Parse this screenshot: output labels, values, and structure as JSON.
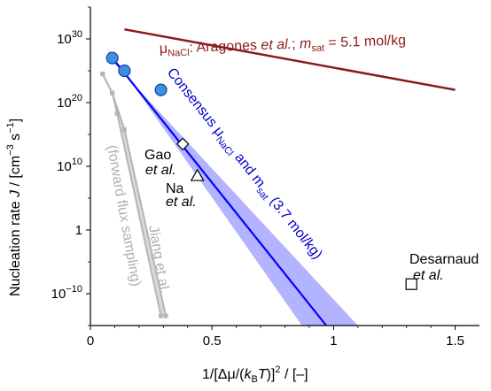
{
  "chart_data": {
    "type": "line",
    "xlabel": "1/[Δμ/(k_B T)]^2 / [–]",
    "ylabel": "Nucleation rate J / [cm^-3 s^-1]",
    "xlim": [
      0,
      1.6
    ],
    "ylim": [
      -15,
      35
    ],
    "y_scale": "log10",
    "x_ticks": [
      "0",
      "0.5",
      "1",
      "1.5"
    ],
    "y_ticks": [
      "10^-10",
      "1",
      "10^10",
      "10^20",
      "10^30"
    ],
    "grid": false,
    "colors": {
      "consensus": "#0000ff",
      "consensus_band": "#b3b3ff",
      "aragones": "#8b1a1a",
      "jiang": "#b5b5b5",
      "points": "#000000"
    },
    "series": [
      {
        "name": "Consensus μNaCl and msat (3.7 mol/kg)",
        "kind": "line_with_band",
        "x": [
          0.08,
          0.97
        ],
        "y": [
          27.5,
          -15
        ],
        "band_lower_x_at_ymin": 0.87,
        "band_upper_x_at_ymin": 1.1
      },
      {
        "name": "μNaCl: Aragones et al.; msat = 5.1 mol/kg",
        "kind": "line",
        "x": [
          0.14,
          1.5
        ],
        "y": [
          31.5,
          22.0
        ]
      },
      {
        "name": "Jiang et al. (forward flux sampling)",
        "kind": "line_band",
        "upper_x": [
          0.05,
          0.09,
          0.14,
          0.31
        ],
        "upper_y": [
          24.5,
          21.5,
          15.8,
          -13.5
        ],
        "lower_x": [
          0.05,
          0.09,
          0.11,
          0.29
        ],
        "lower_y": [
          24.5,
          21.5,
          18.3,
          -13.5
        ]
      },
      {
        "name": "Consensus simulation points",
        "kind": "scatter",
        "x": [
          0.09,
          0.14,
          0.29
        ],
        "y": [
          27.0,
          25.0,
          22.0
        ]
      },
      {
        "name": "Gao et al.",
        "kind": "scatter",
        "marker": "diamond",
        "x": [
          0.38
        ],
        "y": [
          13.5
        ]
      },
      {
        "name": "Na et al.",
        "kind": "scatter",
        "marker": "triangle",
        "x": [
          0.44
        ],
        "y": [
          8.5
        ]
      },
      {
        "name": "Desarnaud et al.",
        "kind": "scatter",
        "marker": "square",
        "x": [
          1.32
        ],
        "y": [
          -8.5
        ]
      }
    ]
  },
  "labels": {
    "aragones_prefix": "μ",
    "aragones_sub": "NaCl",
    "aragones_rest": ": Aragones ",
    "aragones_etal": "et al.",
    "aragones_semi": "; ",
    "aragones_m": "m",
    "aragones_msub": "sat",
    "aragones_value": " = 5.1 mol/kg",
    "consensus_word": "Consensus μ",
    "consensus_sub": "NaCl",
    "consensus_and": " and m",
    "consensus_msub": "sat",
    "consensus_value": " (3.7 mol/kg)",
    "gao": "Gao",
    "gao_etal": "et al.",
    "na": "Na",
    "na_etal": "et al.",
    "desarnaud": "Desarnaud",
    "desarnaud_etal": "et al.",
    "jiang": "Jiang et al.",
    "ffs": "(forward flux sampling)",
    "ylabel_main": "Nucleation rate  ",
    "ylabel_J": "J",
    "ylabel_units": " / [cm",
    "ylabel_exp1": "−3",
    "ylabel_s": " s",
    "ylabel_exp2": "−1",
    "ylabel_close": "]",
    "xlabel_pre": "1/[Δμ/(",
    "xlabel_k": "k",
    "xlabel_B": "B",
    "xlabel_T": "T",
    "xlabel_post": ")]",
    "xlabel_exp": "2",
    "xlabel_tail": " / [–]"
  }
}
